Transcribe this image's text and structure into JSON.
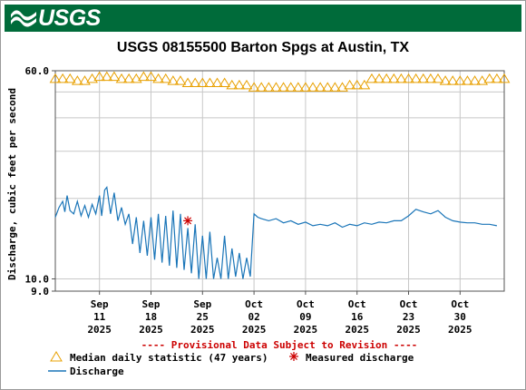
{
  "header": {
    "logo_text": "USGS",
    "logo_icon": "usgs-wave-icon",
    "brand_color": "#006b3a"
  },
  "chart_data": {
    "type": "line",
    "title": "USGS 08155500 Barton Spgs at Austin, TX",
    "ylabel": "Discharge, cubic feet per second",
    "xlabel": "",
    "yscale": "log",
    "ylim": [
      9.0,
      60.0
    ],
    "y_ticks": [
      "60.0",
      "10.0",
      "9.0"
    ],
    "xlim": [
      "2025-09-05",
      "2025-11-05"
    ],
    "x_ticks": [
      {
        "date": "2025-09-11",
        "label": [
          "Sep",
          "11",
          "2025"
        ]
      },
      {
        "date": "2025-09-18",
        "label": [
          "Sep",
          "18",
          "2025"
        ]
      },
      {
        "date": "2025-09-25",
        "label": [
          "Sep",
          "25",
          "2025"
        ]
      },
      {
        "date": "2025-10-02",
        "label": [
          "Oct",
          "02",
          "2025"
        ]
      },
      {
        "date": "2025-10-09",
        "label": [
          "Oct",
          "09",
          "2025"
        ]
      },
      {
        "date": "2025-10-16",
        "label": [
          "Oct",
          "16",
          "2025"
        ]
      },
      {
        "date": "2025-10-23",
        "label": [
          "Oct",
          "23",
          "2025"
        ]
      },
      {
        "date": "2025-10-30",
        "label": [
          "Oct",
          "30",
          "2025"
        ]
      }
    ],
    "grid": true,
    "annotation": "---- Provisional Data Subject to Revision ----",
    "annotation_color": "#cc0000",
    "series": [
      {
        "name": "Median daily statistic (47 years)",
        "kind": "marker-triangle",
        "color": "#e8a000",
        "points": [
          [
            "2025-09-05",
            56
          ],
          [
            "2025-09-06",
            56
          ],
          [
            "2025-09-07",
            56
          ],
          [
            "2025-09-08",
            55
          ],
          [
            "2025-09-09",
            55
          ],
          [
            "2025-09-10",
            56
          ],
          [
            "2025-09-11",
            57
          ],
          [
            "2025-09-12",
            57
          ],
          [
            "2025-09-13",
            57
          ],
          [
            "2025-09-14",
            56
          ],
          [
            "2025-09-15",
            56
          ],
          [
            "2025-09-16",
            56
          ],
          [
            "2025-09-17",
            57
          ],
          [
            "2025-09-18",
            57
          ],
          [
            "2025-09-19",
            56
          ],
          [
            "2025-09-20",
            56
          ],
          [
            "2025-09-21",
            55
          ],
          [
            "2025-09-22",
            55
          ],
          [
            "2025-09-23",
            54
          ],
          [
            "2025-09-24",
            54
          ],
          [
            "2025-09-25",
            54
          ],
          [
            "2025-09-26",
            54
          ],
          [
            "2025-09-27",
            54
          ],
          [
            "2025-09-28",
            54
          ],
          [
            "2025-09-29",
            53
          ],
          [
            "2025-09-30",
            53
          ],
          [
            "2025-10-01",
            53
          ],
          [
            "2025-10-02",
            52
          ],
          [
            "2025-10-03",
            52
          ],
          [
            "2025-10-04",
            52
          ],
          [
            "2025-10-05",
            52
          ],
          [
            "2025-10-06",
            52
          ],
          [
            "2025-10-07",
            52
          ],
          [
            "2025-10-08",
            52
          ],
          [
            "2025-10-09",
            52
          ],
          [
            "2025-10-10",
            52
          ],
          [
            "2025-10-11",
            52
          ],
          [
            "2025-10-12",
            52
          ],
          [
            "2025-10-13",
            52
          ],
          [
            "2025-10-14",
            52
          ],
          [
            "2025-10-15",
            53
          ],
          [
            "2025-10-16",
            53
          ],
          [
            "2025-10-17",
            53
          ],
          [
            "2025-10-18",
            56
          ],
          [
            "2025-10-19",
            56
          ],
          [
            "2025-10-20",
            56
          ],
          [
            "2025-10-21",
            56
          ],
          [
            "2025-10-22",
            56
          ],
          [
            "2025-10-23",
            56
          ],
          [
            "2025-10-24",
            56
          ],
          [
            "2025-10-25",
            56
          ],
          [
            "2025-10-26",
            56
          ],
          [
            "2025-10-27",
            56
          ],
          [
            "2025-10-28",
            55
          ],
          [
            "2025-10-29",
            55
          ],
          [
            "2025-10-30",
            55
          ],
          [
            "2025-10-31",
            55
          ],
          [
            "2025-11-01",
            55
          ],
          [
            "2025-11-02",
            55
          ],
          [
            "2025-11-03",
            56
          ],
          [
            "2025-11-04",
            56
          ],
          [
            "2025-11-05",
            56
          ]
        ]
      },
      {
        "name": "Measured discharge",
        "kind": "marker-asterisk",
        "color": "#cc0000",
        "points": [
          [
            "2025-09-23",
            16.5
          ]
        ]
      },
      {
        "name": "Discharge",
        "kind": "line",
        "color": "#1a75b8",
        "points": [
          [
            "2025-09-05",
            17.0
          ],
          [
            "2025-09-05.5",
            18.5
          ],
          [
            "2025-09-06",
            19.5
          ],
          [
            "2025-09-06.3",
            17.8
          ],
          [
            "2025-09-06.6",
            20.5
          ],
          [
            "2025-09-07",
            18.0
          ],
          [
            "2025-09-07.5",
            17.5
          ],
          [
            "2025-09-08",
            19.5
          ],
          [
            "2025-09-08.5",
            17.2
          ],
          [
            "2025-09-09",
            18.8
          ],
          [
            "2025-09-09.5",
            17.0
          ],
          [
            "2025-09-10",
            19.0
          ],
          [
            "2025-09-10.5",
            17.5
          ],
          [
            "2025-09-11",
            20.5
          ],
          [
            "2025-09-11.3",
            17.2
          ],
          [
            "2025-09-11.7",
            21.5
          ],
          [
            "2025-09-12",
            22.0
          ],
          [
            "2025-09-12.5",
            17.5
          ],
          [
            "2025-09-13",
            21.0
          ],
          [
            "2025-09-13.5",
            16.5
          ],
          [
            "2025-09-14",
            18.5
          ],
          [
            "2025-09-14.5",
            16.0
          ],
          [
            "2025-09-15",
            17.5
          ],
          [
            "2025-09-15.5",
            13.5
          ],
          [
            "2025-09-16",
            17.0
          ],
          [
            "2025-09-16.5",
            12.5
          ],
          [
            "2025-09-17",
            16.5
          ],
          [
            "2025-09-17.5",
            12.2
          ],
          [
            "2025-09-18",
            17.0
          ],
          [
            "2025-09-18.5",
            11.8
          ],
          [
            "2025-09-19",
            17.5
          ],
          [
            "2025-09-19.5",
            11.5
          ],
          [
            "2025-09-20",
            17.2
          ],
          [
            "2025-09-20.5",
            11.2
          ],
          [
            "2025-09-21",
            18.0
          ],
          [
            "2025-09-21.5",
            11.0
          ],
          [
            "2025-09-22",
            17.5
          ],
          [
            "2025-09-22.5",
            10.8
          ],
          [
            "2025-09-23",
            15.5
          ],
          [
            "2025-09-23.5",
            10.5
          ],
          [
            "2025-09-24",
            16.0
          ],
          [
            "2025-09-24.5",
            10.0
          ],
          [
            "2025-09-25",
            14.5
          ],
          [
            "2025-09-25.5",
            10.0
          ],
          [
            "2025-09-26",
            15.0
          ],
          [
            "2025-09-26.5",
            10.0
          ],
          [
            "2025-09-27",
            12.0
          ],
          [
            "2025-09-27.5",
            10.0
          ],
          [
            "2025-09-28",
            14.5
          ],
          [
            "2025-09-28.5",
            10.0
          ],
          [
            "2025-09-29",
            13.0
          ],
          [
            "2025-09-29.5",
            10.2
          ],
          [
            "2025-09-30",
            12.5
          ],
          [
            "2025-09-30.5",
            10.0
          ],
          [
            "2025-10-01",
            12.0
          ],
          [
            "2025-10-01.5",
            10.2
          ],
          [
            "2025-10-02",
            17.5
          ],
          [
            "2025-10-02.5",
            17.0
          ],
          [
            "2025-10-03",
            16.8
          ],
          [
            "2025-10-04",
            16.5
          ],
          [
            "2025-10-05",
            16.8
          ],
          [
            "2025-10-06",
            16.2
          ],
          [
            "2025-10-07",
            16.5
          ],
          [
            "2025-10-08",
            16.0
          ],
          [
            "2025-10-09",
            16.3
          ],
          [
            "2025-10-10",
            15.8
          ],
          [
            "2025-10-11",
            16.0
          ],
          [
            "2025-10-12",
            15.8
          ],
          [
            "2025-10-13",
            16.2
          ],
          [
            "2025-10-14",
            15.6
          ],
          [
            "2025-10-15",
            16.0
          ],
          [
            "2025-10-16",
            15.8
          ],
          [
            "2025-10-17",
            16.2
          ],
          [
            "2025-10-18",
            16.0
          ],
          [
            "2025-10-19",
            16.3
          ],
          [
            "2025-10-20",
            16.2
          ],
          [
            "2025-10-21",
            16.5
          ],
          [
            "2025-10-22",
            16.5
          ],
          [
            "2025-10-23",
            17.2
          ],
          [
            "2025-10-24",
            18.2
          ],
          [
            "2025-10-25",
            17.8
          ],
          [
            "2025-10-26",
            17.5
          ],
          [
            "2025-10-27",
            18.0
          ],
          [
            "2025-10-28",
            17.0
          ],
          [
            "2025-10-29",
            16.5
          ],
          [
            "2025-10-30",
            16.3
          ],
          [
            "2025-10-31",
            16.2
          ],
          [
            "2025-11-01",
            16.2
          ],
          [
            "2025-11-02",
            16.0
          ],
          [
            "2025-11-03",
            16.0
          ],
          [
            "2025-11-04",
            15.8
          ]
        ]
      }
    ]
  }
}
